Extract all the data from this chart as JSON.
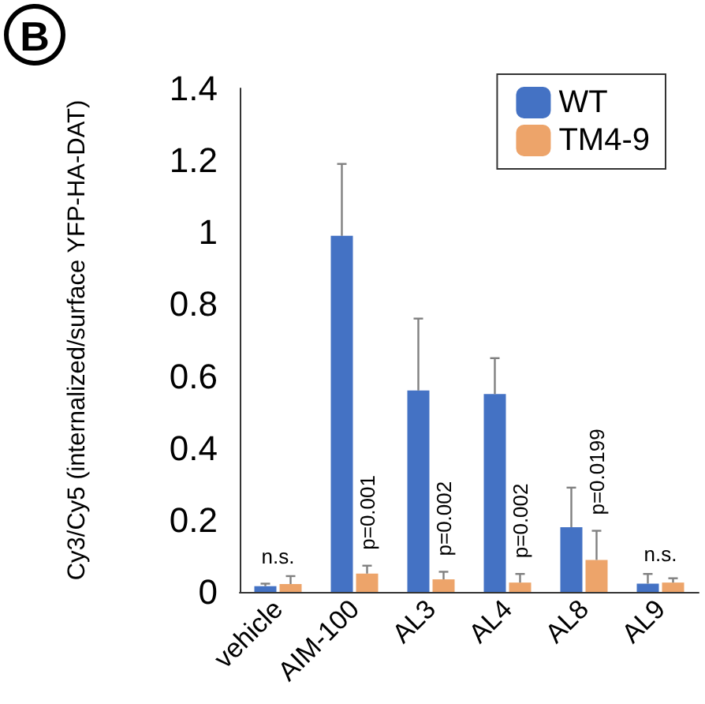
{
  "chart_data": {
    "type": "bar",
    "ylabel": "Cy3/Cy5 (internalized/surface YFP-HA-DAT)",
    "categories": [
      "vehicle",
      "AIM-100",
      "AL3",
      "AL4",
      "AL8",
      "AL9"
    ],
    "series": [
      {
        "name": "WT",
        "color": "#4472c4",
        "values": [
          0.016,
          0.99,
          0.56,
          0.55,
          0.18,
          0.023
        ],
        "errors": [
          [
            0.016,
            0.023
          ],
          [
            0.99,
            1.19
          ],
          [
            0.56,
            0.76
          ],
          [
            0.55,
            0.65
          ],
          [
            0.18,
            0.29
          ],
          [
            0.023,
            0.05
          ]
        ]
      },
      {
        "name": "TM4-9",
        "color": "#eda46a",
        "values": [
          0.022,
          0.051,
          0.035,
          0.026,
          0.089,
          0.026
        ],
        "errors": [
          [
            0.022,
            0.044
          ],
          [
            0.051,
            0.073
          ],
          [
            0.035,
            0.056
          ],
          [
            0.026,
            0.05
          ],
          [
            0.089,
            0.17
          ],
          [
            0.026,
            0.038
          ]
        ]
      }
    ],
    "ylim": [
      0,
      1.4
    ],
    "yticks": [
      0,
      0.2,
      0.4,
      0.6,
      0.8,
      1,
      1.2,
      1.4
    ],
    "grid": false,
    "legend": "top right",
    "annotations": [
      "B",
      "n.s.",
      {
        "text": "p=0.001",
        "x": "AIM-100",
        "y": 0.073
      },
      {
        "text": "p=0.002",
        "x": "AL3",
        "y": 0.056
      },
      {
        "text": "p=0.002",
        "x": "AL4",
        "y": 0.05
      },
      {
        "text": "p=0.0199",
        "x": "AL8",
        "y": 0.17
      },
      "n.s."
    ]
  }
}
